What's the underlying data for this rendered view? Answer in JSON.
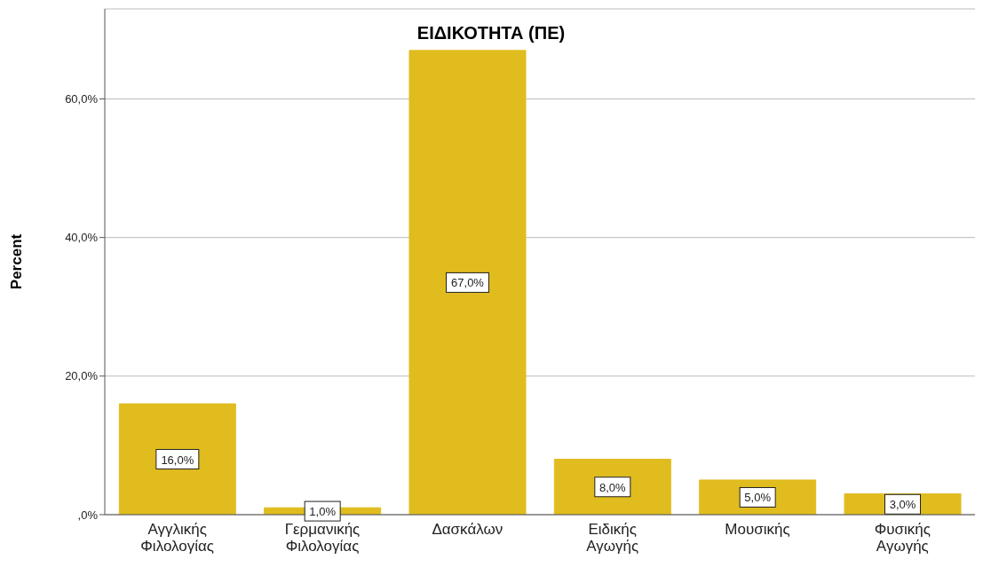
{
  "chart_data": {
    "type": "bar",
    "title": "ΕΙΔΙΚΟΤΗΤΑ (ΠΕ)",
    "ylabel": "Percent",
    "categories": [
      "Αγγλικής Φιλολογίας",
      "Γερμανικής Φιλολογίας",
      "Δασκάλων",
      "Ειδικής Αγωγής",
      "Μουσικής",
      "Φυσικής Αγωγής"
    ],
    "values": [
      16,
      1,
      67,
      8,
      5,
      3
    ],
    "value_labels": [
      "16,0%",
      "1,0%",
      "67,0%",
      "8,0%",
      "5,0%",
      "3,0%"
    ],
    "color": "#e0bc1f",
    "ylim": [
      0,
      73
    ],
    "yticks": [
      {
        "value": 0,
        "label": ",0%"
      },
      {
        "value": 20,
        "label": "20,0%"
      },
      {
        "value": 40,
        "label": "40,0%"
      },
      {
        "value": 60,
        "label": "60,0%"
      }
    ],
    "grid": "y"
  }
}
